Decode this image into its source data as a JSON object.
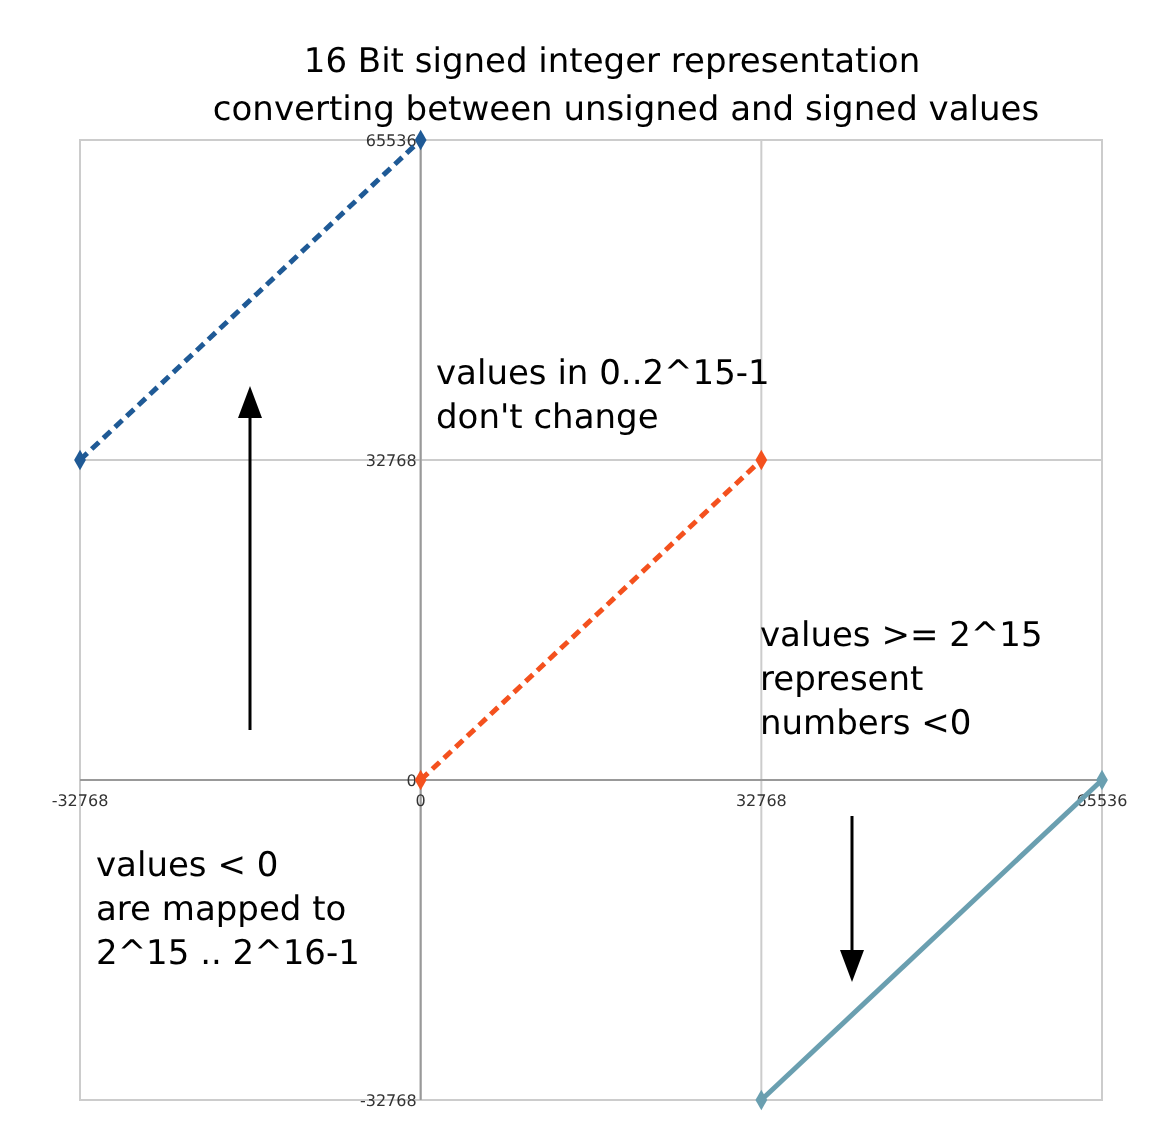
{
  "chart_data": {
    "type": "line",
    "title": "16 Bit signed integer representation",
    "subtitle": "converting between unsigned and signed values",
    "xlim": [
      -32768,
      65536
    ],
    "ylim": [
      -32768,
      65536
    ],
    "xticks": [
      -32768,
      0,
      32768,
      65536
    ],
    "yticks": [
      -32768,
      0,
      32768,
      65536
    ],
    "grid": true,
    "marker": "diamond",
    "series": [
      {
        "color": "#1f5a96",
        "x": [
          -32768,
          0
        ],
        "values": [
          32768,
          65536
        ],
        "line_style": "dashed"
      },
      {
        "color": "#f4511e",
        "x": [
          0,
          32768
        ],
        "values": [
          0,
          32768
        ],
        "line_style": "dashed"
      },
      {
        "color": "#6a9fb0",
        "x": [
          32768,
          65536
        ],
        "values": [
          -32768,
          0
        ],
        "line_style": "solid"
      }
    ],
    "annotations": [
      "values in 0..2^15-1\ndon't change",
      "values >= 2^15\nrepresent\nnumbers <0",
      "values < 0\nare mapped to\n2^15 .. 2^16-1"
    ]
  }
}
